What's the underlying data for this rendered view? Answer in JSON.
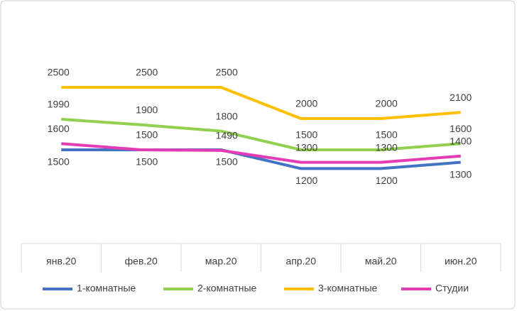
{
  "chart_data": {
    "type": "line",
    "categories": [
      "янв.20",
      "фев.20",
      "мар.20",
      "апр.20",
      "май.20",
      "июн.20"
    ],
    "series": [
      {
        "name": "1-комнатные",
        "color": "#4472c4",
        "values": [
          1500,
          1500,
          1500,
          1200,
          1200,
          1300
        ]
      },
      {
        "name": "2-комнатные",
        "color": "#92d050",
        "values": [
          1990,
          1900,
          1800,
          1500,
          1500,
          1600
        ]
      },
      {
        "name": "3-комнатные",
        "color": "#ffc000",
        "values": [
          2500,
          2500,
          2500,
          2000,
          2000,
          2100
        ]
      },
      {
        "name": "Студии",
        "color": "#e33cb4",
        "values": [
          1600,
          1500,
          1490,
          1300,
          1300,
          1400
        ]
      }
    ],
    "ylim": [
      0,
      3500
    ],
    "legend": "bottom"
  }
}
